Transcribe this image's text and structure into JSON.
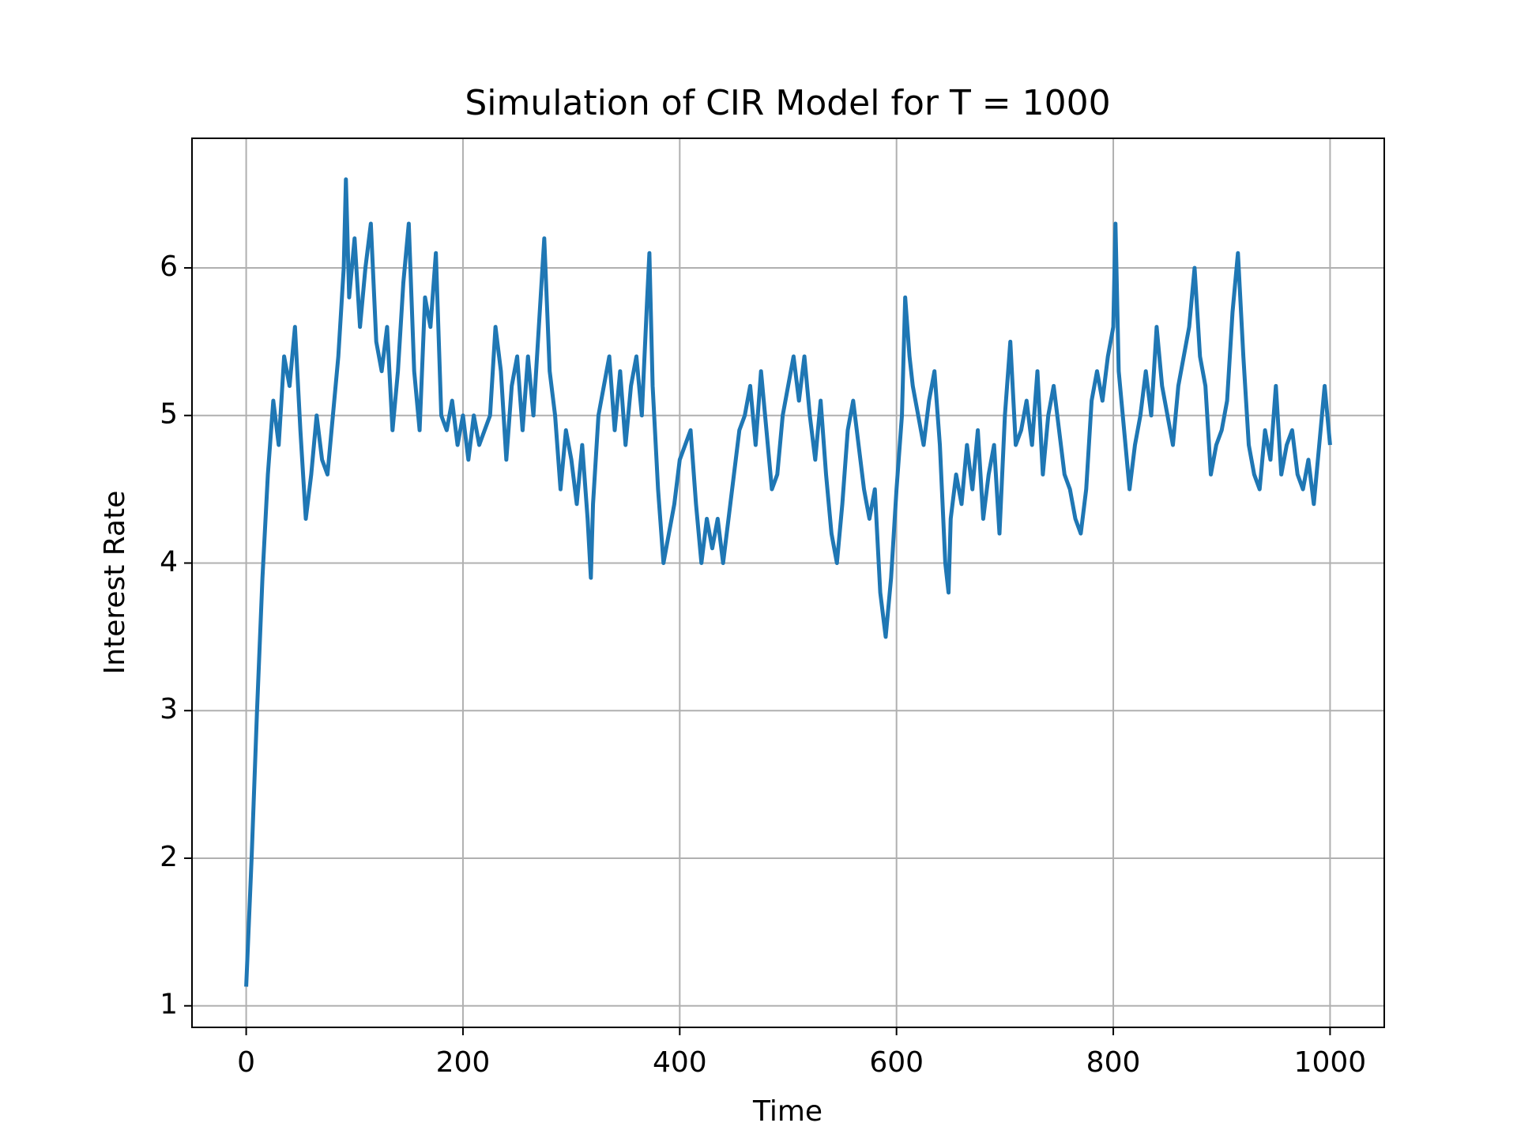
{
  "chart_data": {
    "type": "line",
    "title": "Simulation of CIR Model for T = 1000",
    "xlabel": "Time",
    "ylabel": "Interest Rate",
    "xlim": [
      -50,
      1050
    ],
    "ylim": [
      0.854,
      6.878
    ],
    "xticks": [
      0,
      200,
      400,
      600,
      800,
      1000
    ],
    "yticks": [
      1,
      2,
      3,
      4,
      5,
      6
    ],
    "grid": true,
    "series": [
      {
        "color": "#1f77b4",
        "x": [
          0,
          5,
          10,
          15,
          20,
          25,
          30,
          35,
          40,
          45,
          50,
          55,
          60,
          65,
          70,
          75,
          80,
          85,
          90,
          92,
          95,
          100,
          105,
          110,
          115,
          120,
          125,
          130,
          135,
          140,
          145,
          150,
          155,
          160,
          165,
          170,
          175,
          180,
          185,
          190,
          195,
          200,
          205,
          210,
          215,
          220,
          225,
          230,
          235,
          240,
          245,
          250,
          255,
          260,
          265,
          270,
          275,
          280,
          285,
          290,
          295,
          300,
          305,
          310,
          315,
          318,
          320,
          325,
          330,
          335,
          340,
          345,
          350,
          355,
          360,
          365,
          370,
          372,
          375,
          380,
          385,
          390,
          395,
          400,
          405,
          410,
          415,
          420,
          425,
          430,
          435,
          440,
          445,
          450,
          455,
          460,
          465,
          470,
          475,
          480,
          485,
          490,
          495,
          500,
          505,
          510,
          515,
          520,
          525,
          530,
          535,
          540,
          545,
          550,
          555,
          560,
          565,
          570,
          575,
          580,
          585,
          590,
          595,
          600,
          605,
          608,
          612,
          615,
          620,
          625,
          630,
          635,
          640,
          645,
          648,
          650,
          655,
          660,
          665,
          670,
          675,
          680,
          685,
          690,
          695,
          700,
          705,
          710,
          715,
          720,
          725,
          730,
          735,
          740,
          745,
          750,
          755,
          760,
          765,
          770,
          775,
          780,
          785,
          790,
          795,
          800,
          802,
          805,
          810,
          815,
          820,
          825,
          830,
          835,
          840,
          845,
          850,
          855,
          860,
          865,
          870,
          875,
          880,
          885,
          890,
          895,
          900,
          905,
          910,
          915,
          920,
          925,
          930,
          935,
          940,
          945,
          950,
          955,
          960,
          965,
          970,
          975,
          980,
          985,
          990,
          995,
          1000
        ],
        "values": [
          1.13,
          2.0,
          3.0,
          3.9,
          4.6,
          5.1,
          4.8,
          5.4,
          5.2,
          5.6,
          4.9,
          4.3,
          4.6,
          5.0,
          4.7,
          4.6,
          5.0,
          5.4,
          6.0,
          6.6,
          5.8,
          6.2,
          5.6,
          6.0,
          6.3,
          5.5,
          5.3,
          5.6,
          4.9,
          5.3,
          5.9,
          6.3,
          5.3,
          4.9,
          5.8,
          5.6,
          6.1,
          5.0,
          4.9,
          5.1,
          4.8,
          5.0,
          4.7,
          5.0,
          4.8,
          4.9,
          5.0,
          5.6,
          5.3,
          4.7,
          5.2,
          5.4,
          4.9,
          5.4,
          5.0,
          5.6,
          6.2,
          5.3,
          5.0,
          4.5,
          4.9,
          4.7,
          4.4,
          4.8,
          4.3,
          3.9,
          4.4,
          5.0,
          5.2,
          5.4,
          4.9,
          5.3,
          4.8,
          5.2,
          5.4,
          5.0,
          5.8,
          6.1,
          5.2,
          4.5,
          4.0,
          4.2,
          4.4,
          4.7,
          4.8,
          4.9,
          4.4,
          4.0,
          4.3,
          4.1,
          4.3,
          4.0,
          4.3,
          4.6,
          4.9,
          5.0,
          5.2,
          4.8,
          5.3,
          4.9,
          4.5,
          4.6,
          5.0,
          5.2,
          5.4,
          5.1,
          5.4,
          5.0,
          4.7,
          5.1,
          4.6,
          4.2,
          4.0,
          4.4,
          4.9,
          5.1,
          4.8,
          4.5,
          4.3,
          4.5,
          3.8,
          3.5,
          3.9,
          4.5,
          5.0,
          5.8,
          5.4,
          5.2,
          5.0,
          4.8,
          5.1,
          5.3,
          4.8,
          4.0,
          3.8,
          4.3,
          4.6,
          4.4,
          4.8,
          4.5,
          4.9,
          4.3,
          4.6,
          4.8,
          4.2,
          5.0,
          5.5,
          4.8,
          4.9,
          5.1,
          4.8,
          5.3,
          4.6,
          5.0,
          5.2,
          4.9,
          4.6,
          4.5,
          4.3,
          4.2,
          4.5,
          5.1,
          5.3,
          5.1,
          5.4,
          5.6,
          6.3,
          5.3,
          4.9,
          4.5,
          4.8,
          5.0,
          5.3,
          5.0,
          5.6,
          5.2,
          5.0,
          4.8,
          5.2,
          5.4,
          5.6,
          6.0,
          5.4,
          5.2,
          4.6,
          4.8,
          4.9,
          5.1,
          5.7,
          6.1,
          5.4,
          4.8,
          4.6,
          4.5,
          4.9,
          4.7,
          5.2,
          4.6,
          4.8,
          4.9,
          4.6,
          4.5,
          4.7,
          4.4,
          4.8,
          5.2,
          4.8
        ]
      }
    ]
  }
}
